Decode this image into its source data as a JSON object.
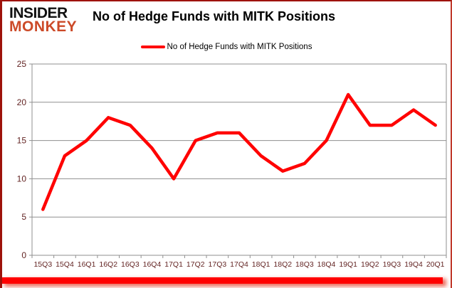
{
  "logo": {
    "line1": "INSIDER",
    "line2": "MONKEY"
  },
  "header": {
    "title": "No of Hedge Funds with MITK Positions"
  },
  "legend": {
    "label": "No of Hedge Funds with MITK Positions"
  },
  "colors": {
    "series": "#ff0000",
    "grid": "#8f8f8f",
    "axis_text": "#632423",
    "title_text": "#000000",
    "logo_accent": "#cc4a28",
    "frame_bar": "#ff0000",
    "frame_border": "#9e120b"
  },
  "chart_data": {
    "type": "line",
    "title": "No of Hedge Funds with MITK Positions",
    "xlabel": "",
    "ylabel": "",
    "categories": [
      "15Q3",
      "15Q4",
      "16Q1",
      "16Q2",
      "16Q3",
      "16Q4",
      "17Q1",
      "17Q2",
      "17Q3",
      "17Q4",
      "18Q1",
      "18Q2",
      "18Q3",
      "18Q4",
      "19Q1",
      "19Q2",
      "19Q3",
      "19Q4",
      "20Q1"
    ],
    "series": [
      {
        "name": "No of Hedge Funds with MITK Positions",
        "color": "#ff0000",
        "values": [
          6,
          13,
          15,
          18,
          17,
          14,
          10,
          15,
          16,
          16,
          13,
          11,
          12,
          15,
          21,
          17,
          17,
          19,
          17
        ]
      }
    ],
    "ylim": [
      0,
      25
    ],
    "yticks": [
      0,
      5,
      10,
      15,
      20,
      25
    ],
    "grid": true,
    "legend_position": "top-center"
  }
}
